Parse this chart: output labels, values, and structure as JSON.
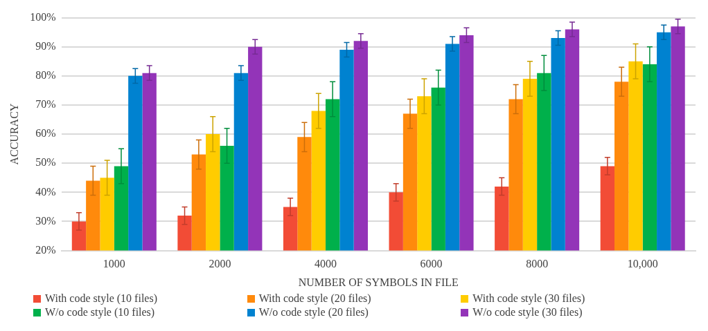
{
  "chart_data": {
    "type": "bar",
    "xlabel": "NUMBER OF SYMBOLS IN FILE",
    "ylabel": "ACCURACY",
    "categories": [
      "1000",
      "2000",
      "4000",
      "6000",
      "8000",
      "10,000"
    ],
    "ylim": [
      20,
      100
    ],
    "yticks": [
      {
        "value": 20,
        "label": "20%"
      },
      {
        "value": 30,
        "label": "30%"
      },
      {
        "value": 40,
        "label": "40%"
      },
      {
        "value": 50,
        "label": "50%"
      },
      {
        "value": 60,
        "label": "60%"
      },
      {
        "value": 70,
        "label": "70%"
      },
      {
        "value": 80,
        "label": "80%"
      },
      {
        "value": 90,
        "label": "90%"
      },
      {
        "value": 100,
        "label": "100%"
      }
    ],
    "grid": "y",
    "legend": "bottom",
    "series": [
      {
        "name": "With code style (10 files)",
        "color": "#f24c36",
        "values": [
          30,
          32,
          35,
          40,
          42,
          49
        ],
        "errors": [
          3,
          3,
          3,
          3,
          3,
          3
        ]
      },
      {
        "name": "With code style (20 files)",
        "color": "#ff8a0c",
        "values": [
          44,
          53,
          59,
          67,
          72,
          78
        ],
        "errors": [
          5,
          5,
          5,
          5,
          5,
          5
        ]
      },
      {
        "name": "With code style (30 files)",
        "color": "#ffcc00",
        "values": [
          45,
          60,
          68,
          73,
          79,
          85
        ],
        "errors": [
          6,
          6,
          6,
          6,
          6,
          6
        ]
      },
      {
        "name": "W/o code style (10 files)",
        "color": "#00b04b",
        "values": [
          49,
          56,
          72,
          76,
          81,
          84
        ],
        "errors": [
          6,
          6,
          6,
          6,
          6,
          6
        ]
      },
      {
        "name": "W/o code style (20 files)",
        "color": "#0082d0",
        "values": [
          80,
          81,
          89,
          91,
          93,
          95
        ],
        "errors": [
          2.5,
          2.5,
          2.5,
          2.5,
          2.5,
          2.5
        ]
      },
      {
        "name": "W/o code style (30 files)",
        "color": "#9334b8",
        "values": [
          81,
          90,
          92,
          94,
          96,
          97
        ],
        "errors": [
          2.5,
          2.5,
          2.5,
          2.5,
          2.5,
          2.5
        ]
      }
    ]
  }
}
